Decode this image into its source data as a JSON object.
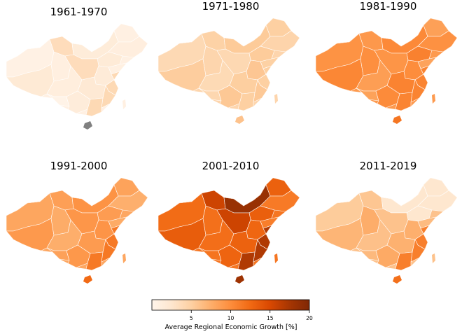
{
  "panels": [
    {
      "title": "1961-1970",
      "base": 0.04,
      "hi": 0.25,
      "spread": 0.09,
      "special": "hainan-grey"
    },
    {
      "title": "1971-1980",
      "base": 0.22,
      "hi": 0.3,
      "spread": 0.1,
      "special": ""
    },
    {
      "title": "1981-1990",
      "base": 0.45,
      "hi": 0.58,
      "spread": 0.14,
      "special": ""
    },
    {
      "title": "1991-2000",
      "base": 0.4,
      "hi": 0.62,
      "spread": 0.12,
      "special": ""
    },
    {
      "title": "2001-2010",
      "base": 0.58,
      "hi": 0.9,
      "spread": 0.14,
      "special": "north-dark"
    },
    {
      "title": "2011-2019",
      "base": 0.3,
      "hi": 0.6,
      "spread": 0.14,
      "special": "north-light"
    }
  ],
  "colorbar": {
    "label": "Average Regional Economic Growth [%]",
    "min": 0,
    "max": 20,
    "ticks": [
      "5",
      "10",
      "15",
      "20"
    ],
    "tick_values": [
      5,
      10,
      15,
      20
    ],
    "colormap": "Oranges",
    "stops": [
      "#fff5eb",
      "#fee6ce",
      "#fdd0a2",
      "#fdae6b",
      "#fd8d3c",
      "#f16913",
      "#d94801",
      "#a63603",
      "#7f2704"
    ]
  },
  "colors": {
    "no_data": "#808080",
    "border": "#ffffff"
  }
}
